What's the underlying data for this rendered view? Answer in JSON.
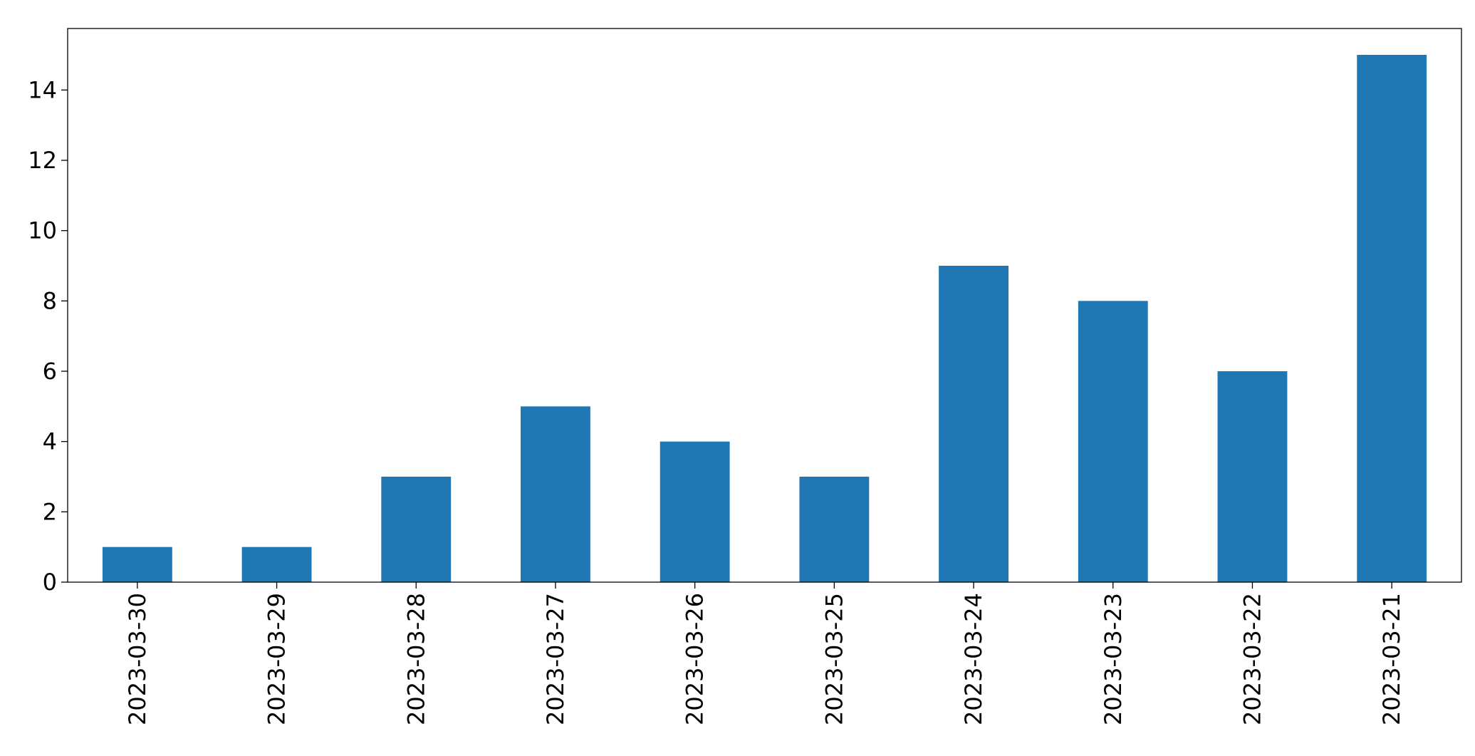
{
  "chart_data": {
    "type": "bar",
    "categories": [
      "2023-03-30",
      "2023-03-29",
      "2023-03-28",
      "2023-03-27",
      "2023-03-26",
      "2023-03-25",
      "2023-03-24",
      "2023-03-23",
      "2023-03-22",
      "2023-03-21"
    ],
    "values": [
      1,
      1,
      3,
      5,
      4,
      3,
      9,
      8,
      6,
      15
    ],
    "color": "#1f77b4",
    "ylim": [
      0,
      15.75
    ],
    "yticks": [
      0,
      2,
      4,
      6,
      8,
      10,
      12,
      14
    ],
    "grid": false
  }
}
